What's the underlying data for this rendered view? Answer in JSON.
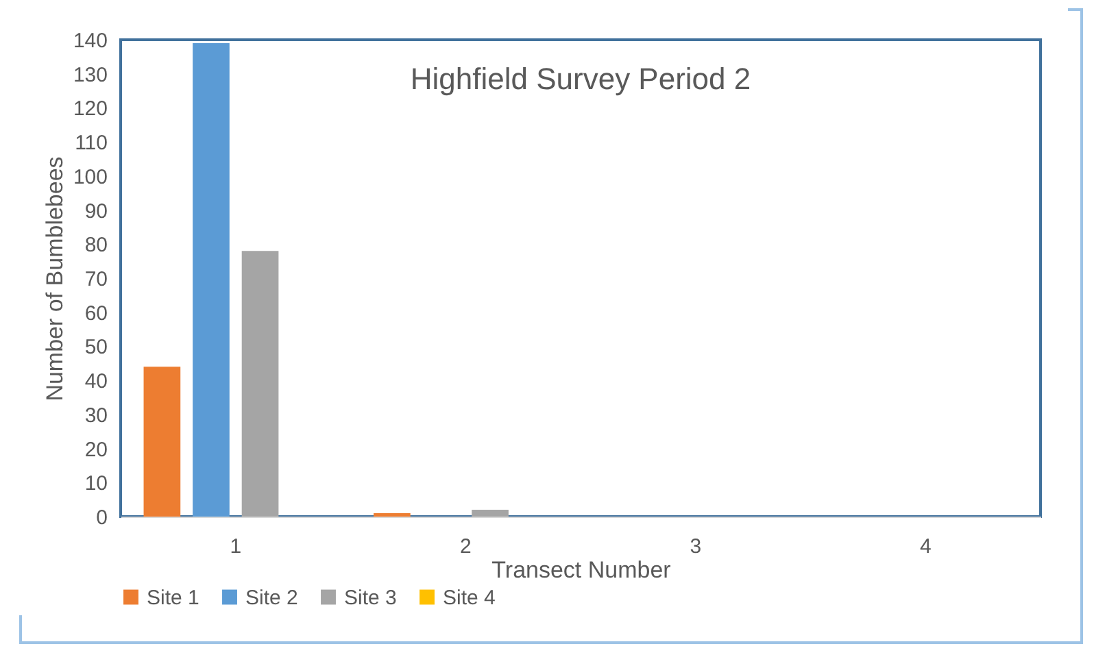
{
  "chart_data": {
    "type": "bar",
    "title": "Highfield Survey Period 2",
    "xlabel": "Transect Number",
    "ylabel": "Number of Bumblebees",
    "categories": [
      "1",
      "2",
      "3",
      "4"
    ],
    "series": [
      {
        "name": "Site 1",
        "color": "#ed7d31",
        "values": [
          44,
          1,
          0,
          0
        ]
      },
      {
        "name": "Site 2",
        "color": "#5b9bd5",
        "values": [
          139,
          0,
          0,
          0
        ]
      },
      {
        "name": "Site 3",
        "color": "#a5a5a5",
        "values": [
          78,
          2,
          0,
          0
        ]
      },
      {
        "name": "Site 4",
        "color": "#ffc000",
        "values": [
          0,
          0,
          0,
          0
        ]
      }
    ],
    "ylim": [
      0,
      140
    ],
    "yticks": [
      0,
      10,
      20,
      30,
      40,
      50,
      60,
      70,
      80,
      90,
      100,
      110,
      120,
      130,
      140
    ],
    "grid": false,
    "legend": "bottom"
  }
}
